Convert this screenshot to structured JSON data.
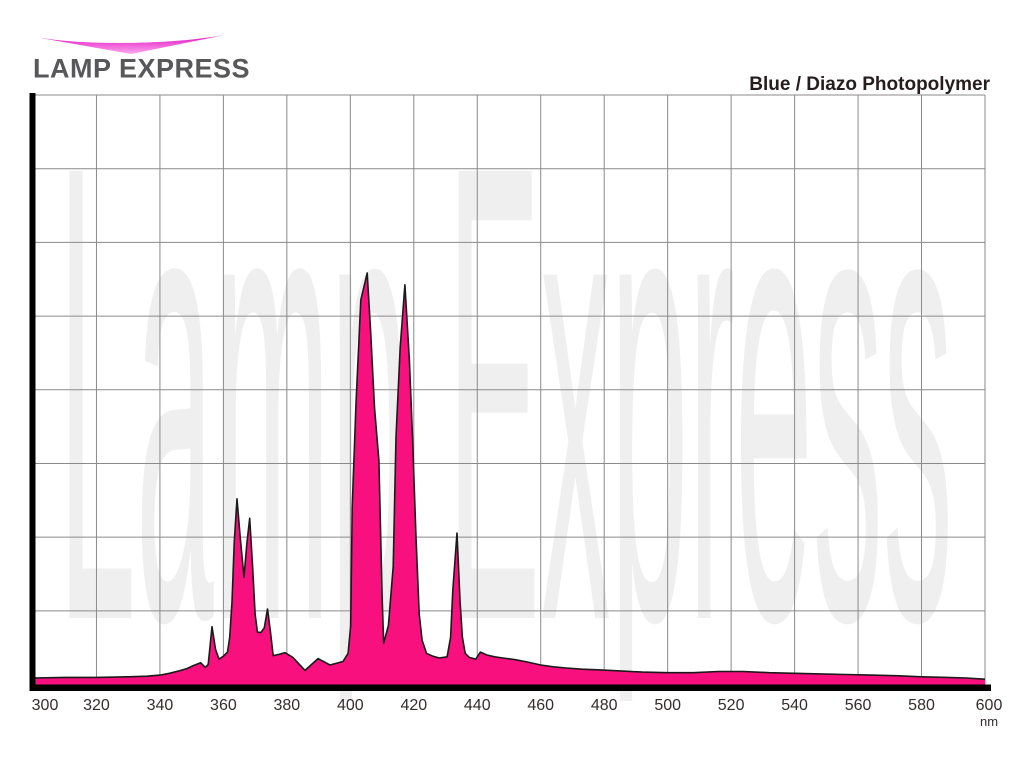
{
  "page": {
    "background": "#FFFFFF"
  },
  "header": {
    "logo_text": "LAMP EXPRESS",
    "title": "Blue / Diazo Photopolymer"
  },
  "watermark": {
    "text": "Lamp Express"
  },
  "colors": {
    "spectrum_fill": "#F8117E",
    "spectrum_outline": "#1A1A1A",
    "grid": "#8A8A8A",
    "axis": "#000000",
    "watermark": "#EFEFEF",
    "swoosh_top": "#DF09C0",
    "swoosh_bottom": "#FFA8EE",
    "logo_text": "#58585A",
    "title_text": "#261D1F",
    "tick_text": "#352C2C"
  },
  "chart_data": {
    "type": "area",
    "title": "Blue / Diazo Photopolymer",
    "xlabel": "nm",
    "ylabel": "",
    "x_range": [
      300,
      600
    ],
    "x_tick_step_nm": 20,
    "x_ticks": [
      "300",
      "320",
      "340",
      "360",
      "380",
      "400",
      "420",
      "440",
      "460",
      "480",
      "500",
      "520",
      "540",
      "560",
      "580",
      "600"
    ],
    "x_unit": "nm",
    "y_axis_note": "relative intensity, unlabeled axis, 8 horizontal gridline rows = 0-100%",
    "grid": "on",
    "legend": "none",
    "series": [
      {
        "name": "Blue / Diazo Photopolymer spectral output",
        "points_nm_intensity_pct": [
          [
            300,
            1.1
          ],
          [
            310,
            1.2
          ],
          [
            320,
            1.2
          ],
          [
            330,
            1.3
          ],
          [
            336,
            1.4
          ],
          [
            340,
            1.6
          ],
          [
            343,
            1.9
          ],
          [
            346,
            2.3
          ],
          [
            348.5,
            2.7
          ],
          [
            350.5,
            3.2
          ],
          [
            352.8,
            3.7
          ],
          [
            354.3,
            2.9
          ],
          [
            355.2,
            3.4
          ],
          [
            356.4,
            9.8
          ],
          [
            357.5,
            6.0
          ],
          [
            358.6,
            4.3
          ],
          [
            360,
            4.8
          ],
          [
            361.3,
            5.5
          ],
          [
            362,
            8
          ],
          [
            362.7,
            14
          ],
          [
            363.4,
            24
          ],
          [
            364.3,
            31.5
          ],
          [
            365.3,
            25
          ],
          [
            366.5,
            18.2
          ],
          [
            367.4,
            24
          ],
          [
            368.3,
            28.2
          ],
          [
            369.2,
            20
          ],
          [
            370,
            12
          ],
          [
            370.7,
            8.9
          ],
          [
            371.8,
            8.8
          ],
          [
            372.9,
            9.6
          ],
          [
            373.9,
            12.8
          ],
          [
            374.8,
            9
          ],
          [
            375.7,
            4.9
          ],
          [
            377.5,
            5.1
          ],
          [
            379.4,
            5.4
          ],
          [
            381.9,
            4.6
          ],
          [
            385.7,
            2.4
          ],
          [
            389.8,
            4.4
          ],
          [
            393.6,
            3.3
          ],
          [
            397.7,
            3.9
          ],
          [
            399.3,
            5.3
          ],
          [
            400.1,
            10
          ],
          [
            400.6,
            30
          ],
          [
            401.8,
            47.7
          ],
          [
            403.3,
            65.2
          ],
          [
            405.3,
            69.8
          ],
          [
            406.4,
            60
          ],
          [
            407.6,
            47
          ],
          [
            409,
            38
          ],
          [
            410,
            15
          ],
          [
            410.5,
            7
          ],
          [
            412,
            10
          ],
          [
            413.5,
            20
          ],
          [
            414.4,
            42
          ],
          [
            415.7,
            57.2
          ],
          [
            417.2,
            67.8
          ],
          [
            418.6,
            55
          ],
          [
            419.6,
            42
          ],
          [
            420.7,
            25
          ],
          [
            421.7,
            12
          ],
          [
            422.6,
            7.5
          ],
          [
            424,
            5.3
          ],
          [
            426,
            4.8
          ],
          [
            428,
            4.5
          ],
          [
            430.5,
            4.7
          ],
          [
            431.6,
            8
          ],
          [
            432.3,
            16
          ],
          [
            433.6,
            25.7
          ],
          [
            434.6,
            14
          ],
          [
            435.3,
            8
          ],
          [
            436.2,
            5.3
          ],
          [
            437.5,
            4.6
          ],
          [
            439.5,
            4.3
          ],
          [
            441,
            5.5
          ],
          [
            443,
            5.0
          ],
          [
            445.5,
            4.7
          ],
          [
            448,
            4.5
          ],
          [
            452,
            4.2
          ],
          [
            456,
            3.8
          ],
          [
            460,
            3.3
          ],
          [
            464,
            3.0
          ],
          [
            468,
            2.8
          ],
          [
            473,
            2.6
          ],
          [
            478,
            2.5
          ],
          [
            485,
            2.3
          ],
          [
            492,
            2.1
          ],
          [
            500,
            2.0
          ],
          [
            508,
            2.0
          ],
          [
            516,
            2.2
          ],
          [
            524,
            2.2
          ],
          [
            532,
            2.0
          ],
          [
            540,
            1.9
          ],
          [
            548,
            1.8
          ],
          [
            556,
            1.7
          ],
          [
            564,
            1.6
          ],
          [
            572,
            1.5
          ],
          [
            580,
            1.3
          ],
          [
            588,
            1.2
          ],
          [
            594,
            1.1
          ],
          [
            600,
            0.9
          ]
        ]
      }
    ]
  }
}
